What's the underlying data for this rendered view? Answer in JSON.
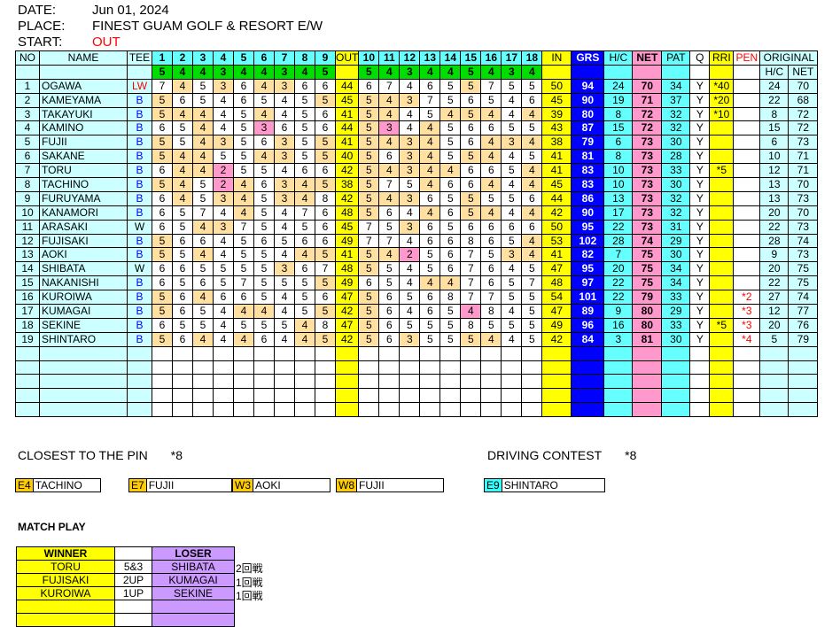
{
  "header": {
    "date_label": "DATE:",
    "date": "Jun 01, 2024",
    "place_label": "PLACE:",
    "place": "FINEST GUAM GOLF & RESORT E/W",
    "start_label": "START:",
    "start": "OUT"
  },
  "table": {
    "headers": {
      "no": "NO",
      "name": "NAME",
      "tee": "TEE",
      "out": "OUT",
      "in": "IN",
      "grs": "GRS",
      "hc": "H/C",
      "net": "NET",
      "pat": "PAT",
      "q": "Q",
      "rri": "RRI",
      "pen": "PEN",
      "original": "ORIGINAL",
      "orig_hc": "H/C",
      "orig_net": "NET"
    },
    "holes": [
      "1",
      "2",
      "3",
      "4",
      "5",
      "6",
      "7",
      "8",
      "9",
      "10",
      "11",
      "12",
      "13",
      "14",
      "15",
      "16",
      "17",
      "18"
    ],
    "par": [
      5,
      4,
      4,
      3,
      4,
      4,
      3,
      4,
      5,
      5,
      4,
      3,
      4,
      4,
      5,
      4,
      3,
      4
    ],
    "rows": [
      {
        "no": "1",
        "name": "OGAWA",
        "tee": "LW",
        "scores": [
          7,
          4,
          5,
          3,
          6,
          4,
          3,
          6,
          6,
          6,
          7,
          4,
          6,
          5,
          5,
          7,
          5,
          5
        ],
        "out": "44",
        "in": "50",
        "grs": "94",
        "hc": "24",
        "net": "70",
        "pat": "34",
        "q": "Y",
        "rri": "*40",
        "pen": "",
        "orig_hc": "24",
        "orig_net": "70"
      },
      {
        "no": "2",
        "name": "KAMEYAMA",
        "tee": "B",
        "scores": [
          5,
          6,
          5,
          4,
          6,
          5,
          4,
          5,
          5,
          5,
          4,
          3,
          7,
          5,
          6,
          5,
          4,
          6
        ],
        "out": "45",
        "in": "45",
        "grs": "90",
        "hc": "19",
        "net": "71",
        "pat": "37",
        "q": "Y",
        "rri": "*20",
        "pen": "",
        "orig_hc": "22",
        "orig_net": "68"
      },
      {
        "no": "3",
        "name": "TAKAYUKI",
        "tee": "B",
        "scores": [
          5,
          4,
          4,
          4,
          5,
          4,
          4,
          5,
          6,
          5,
          4,
          4,
          5,
          4,
          5,
          4,
          4,
          4
        ],
        "out": "41",
        "in": "39",
        "grs": "80",
        "hc": "8",
        "net": "72",
        "pat": "32",
        "q": "Y",
        "rri": "*10",
        "pen": "",
        "orig_hc": "8",
        "orig_net": "72"
      },
      {
        "no": "4",
        "name": "KAMINO",
        "tee": "B",
        "scores": [
          6,
          5,
          4,
          4,
          5,
          3,
          6,
          5,
          6,
          5,
          3,
          4,
          4,
          5,
          6,
          6,
          5,
          5
        ],
        "out": "44",
        "in": "43",
        "grs": "87",
        "hc": "15",
        "net": "72",
        "pat": "32",
        "q": "Y",
        "rri": "",
        "pen": "",
        "orig_hc": "15",
        "orig_net": "72"
      },
      {
        "no": "5",
        "name": "FUJII",
        "tee": "B",
        "scores": [
          5,
          5,
          4,
          3,
          5,
          6,
          3,
          5,
          5,
          5,
          4,
          3,
          4,
          5,
          6,
          4,
          3,
          4
        ],
        "out": "41",
        "in": "38",
        "grs": "79",
        "hc": "6",
        "net": "73",
        "pat": "30",
        "q": "Y",
        "rri": "",
        "pen": "",
        "orig_hc": "6",
        "orig_net": "73"
      },
      {
        "no": "6",
        "name": "SAKANE",
        "tee": "B",
        "scores": [
          5,
          4,
          4,
          5,
          5,
          4,
          3,
          5,
          5,
          5,
          6,
          3,
          4,
          5,
          5,
          4,
          4,
          5
        ],
        "out": "40",
        "in": "41",
        "grs": "81",
        "hc": "8",
        "net": "73",
        "pat": "28",
        "q": "Y",
        "rri": "",
        "pen": "",
        "orig_hc": "10",
        "orig_net": "71"
      },
      {
        "no": "7",
        "name": "TORU",
        "tee": "B",
        "scores": [
          6,
          4,
          4,
          2,
          5,
          5,
          4,
          6,
          6,
          5,
          4,
          3,
          4,
          4,
          6,
          6,
          5,
          4
        ],
        "out": "42",
        "in": "41",
        "grs": "83",
        "hc": "10",
        "net": "73",
        "pat": "33",
        "q": "Y",
        "rri": "*5",
        "pen": "",
        "orig_hc": "12",
        "orig_net": "71"
      },
      {
        "no": "8",
        "name": "TACHINO",
        "tee": "B",
        "scores": [
          5,
          4,
          5,
          2,
          4,
          6,
          3,
          4,
          5,
          5,
          7,
          5,
          4,
          6,
          6,
          4,
          4,
          4
        ],
        "out": "38",
        "in": "45",
        "grs": "83",
        "hc": "10",
        "net": "73",
        "pat": "30",
        "q": "Y",
        "rri": "",
        "pen": "",
        "orig_hc": "13",
        "orig_net": "70"
      },
      {
        "no": "9",
        "name": "FURUYAMA",
        "tee": "B",
        "scores": [
          6,
          4,
          5,
          3,
          4,
          5,
          3,
          4,
          8,
          5,
          4,
          3,
          6,
          5,
          5,
          5,
          5,
          6
        ],
        "out": "42",
        "in": "44",
        "grs": "86",
        "hc": "13",
        "net": "73",
        "pat": "32",
        "q": "Y",
        "rri": "",
        "pen": "",
        "orig_hc": "13",
        "orig_net": "73"
      },
      {
        "no": "10",
        "name": "KANAMORI",
        "tee": "B",
        "scores": [
          6,
          5,
          7,
          4,
          4,
          5,
          4,
          7,
          6,
          5,
          6,
          4,
          4,
          6,
          5,
          4,
          4,
          4
        ],
        "out": "48",
        "in": "42",
        "grs": "90",
        "hc": "17",
        "net": "73",
        "pat": "32",
        "q": "Y",
        "rri": "",
        "pen": "",
        "orig_hc": "20",
        "orig_net": "70"
      },
      {
        "no": "11",
        "name": "ARASAKI",
        "tee": "W",
        "scores": [
          6,
          5,
          4,
          3,
          7,
          5,
          4,
          5,
          6,
          7,
          5,
          3,
          6,
          5,
          6,
          6,
          6,
          6
        ],
        "out": "45",
        "in": "50",
        "grs": "95",
        "hc": "22",
        "net": "73",
        "pat": "31",
        "q": "Y",
        "rri": "",
        "pen": "",
        "orig_hc": "22",
        "orig_net": "73"
      },
      {
        "no": "12",
        "name": "FUJISAKI",
        "tee": "B",
        "scores": [
          5,
          6,
          6,
          4,
          5,
          6,
          5,
          6,
          6,
          7,
          7,
          4,
          6,
          6,
          8,
          6,
          5,
          4
        ],
        "out": "49",
        "in": "53",
        "grs": "102",
        "hc": "28",
        "net": "74",
        "pat": "29",
        "q": "Y",
        "rri": "",
        "pen": "",
        "orig_hc": "28",
        "orig_net": "74"
      },
      {
        "no": "13",
        "name": "AOKI",
        "tee": "B",
        "scores": [
          5,
          5,
          4,
          4,
          5,
          5,
          4,
          4,
          5,
          5,
          4,
          2,
          5,
          6,
          7,
          5,
          3,
          4
        ],
        "out": "41",
        "in": "41",
        "grs": "82",
        "hc": "7",
        "net": "75",
        "pat": "30",
        "q": "Y",
        "rri": "",
        "pen": "",
        "orig_hc": "9",
        "orig_net": "73"
      },
      {
        "no": "14",
        "name": "SHIBATA",
        "tee": "W",
        "scores": [
          6,
          6,
          5,
          5,
          5,
          5,
          3,
          6,
          7,
          5,
          5,
          4,
          5,
          6,
          7,
          6,
          4,
          5
        ],
        "out": "48",
        "in": "47",
        "grs": "95",
        "hc": "20",
        "net": "75",
        "pat": "34",
        "q": "Y",
        "rri": "",
        "pen": "",
        "orig_hc": "20",
        "orig_net": "75"
      },
      {
        "no": "15",
        "name": "NAKANISHI",
        "tee": "B",
        "scores": [
          6,
          5,
          6,
          5,
          7,
          5,
          5,
          5,
          5,
          6,
          5,
          4,
          4,
          4,
          7,
          6,
          5,
          7
        ],
        "out": "49",
        "in": "48",
        "grs": "97",
        "hc": "22",
        "net": "75",
        "pat": "34",
        "q": "Y",
        "rri": "",
        "pen": "",
        "orig_hc": "22",
        "orig_net": "75"
      },
      {
        "no": "16",
        "name": "KUROIWA",
        "tee": "B",
        "scores": [
          5,
          6,
          4,
          6,
          6,
          5,
          4,
          5,
          6,
          5,
          6,
          5,
          6,
          8,
          7,
          7,
          5,
          5
        ],
        "out": "47",
        "in": "54",
        "grs": "101",
        "hc": "22",
        "net": "79",
        "pat": "33",
        "q": "Y",
        "rri": "",
        "pen": "*2",
        "orig_hc": "27",
        "orig_net": "74"
      },
      {
        "no": "17",
        "name": "KUMAGAI",
        "tee": "B",
        "scores": [
          5,
          6,
          5,
          4,
          4,
          4,
          4,
          5,
          5,
          5,
          6,
          4,
          6,
          5,
          4,
          8,
          4,
          5
        ],
        "out": "42",
        "in": "47",
        "grs": "89",
        "hc": "9",
        "net": "80",
        "pat": "29",
        "q": "Y",
        "rri": "",
        "pen": "*3",
        "orig_hc": "12",
        "orig_net": "77"
      },
      {
        "no": "18",
        "name": "SEKINE",
        "tee": "B",
        "scores": [
          6,
          5,
          5,
          4,
          5,
          5,
          5,
          4,
          8,
          5,
          6,
          5,
          5,
          5,
          8,
          5,
          5,
          5
        ],
        "out": "47",
        "in": "49",
        "grs": "96",
        "hc": "16",
        "net": "80",
        "pat": "33",
        "q": "Y",
        "rri": "*5",
        "pen": "*3",
        "orig_hc": "20",
        "orig_net": "76"
      },
      {
        "no": "19",
        "name": "SHINTARO",
        "tee": "B",
        "scores": [
          5,
          6,
          4,
          4,
          4,
          6,
          4,
          4,
          5,
          5,
          6,
          3,
          5,
          5,
          5,
          4,
          4,
          5
        ],
        "out": "42",
        "in": "42",
        "grs": "84",
        "hc": "3",
        "net": "81",
        "pat": "30",
        "q": "Y",
        "rri": "",
        "pen": "*4",
        "orig_hc": "5",
        "orig_net": "79"
      }
    ],
    "empty_rows": 5
  },
  "closest_to_pin": {
    "title": "CLOSEST TO THE PIN",
    "count": "*8",
    "entries": [
      {
        "hole": "E4",
        "name": "TACHINO"
      },
      {
        "hole": "E7",
        "name": "FUJII"
      },
      {
        "hole": "W3",
        "name": "AOKI"
      },
      {
        "hole": "W8",
        "name": "FUJII"
      }
    ]
  },
  "driving_contest": {
    "title": "DRIVING CONTEST",
    "count": "*8",
    "entries": [
      {
        "hole": "E9",
        "name": "SHINTARO"
      }
    ]
  },
  "match_play": {
    "title": "MATCH PLAY",
    "winner_header": "WINNER",
    "loser_header": "LOSER",
    "matches": [
      {
        "winner": "TORU",
        "result": "5&3",
        "loser": "SHIBATA",
        "round": "2回戦"
      },
      {
        "winner": "FUJISAKI",
        "result": "2UP",
        "loser": "KUMAGAI",
        "round": "1回戦"
      },
      {
        "winner": "KUROIWA",
        "result": "1UP",
        "loser": "SEKINE",
        "round": "1回戦"
      }
    ],
    "empty_rows": 2
  },
  "colors": {
    "par": "#ffe0a0",
    "birdie": "#ff99cc",
    "grs": "#0000ff",
    "net": "#ff99cc",
    "hc": "#66ffff",
    "total": "#ffff00",
    "par_row": "#00dd00"
  }
}
